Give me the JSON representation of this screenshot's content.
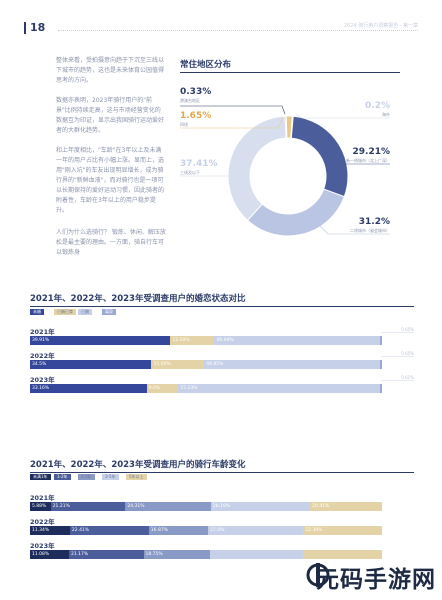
{
  "header": {
    "page_number": "18",
    "running_title": "2024 骑行用户洞察报告 · 第一章"
  },
  "body_paragraphs": [
    "整体来看，受拍摄意向趋于下沉至三线以下城市的趋势，这也是未来体育公园值得思考的方向。",
    "数据亦表明，2023年骑行用户的\"前景\"比例持续走高，这与市场经营变化的数据互为印证，显示出我国骑行运动爱好者的大群化趋势。",
    "和上年度相比，\"车龄\"在3年以上及未满一年的用户占比有小幅上涨。显而上，选用\"刚入坑\"的车友出现明显增长，成为骑行界的\"新鲜血液\"，而对骑行也是一项可以长期保持的爱好运动习惯，因此骑者的附着性，车龄在3年以上的用户稳步提升。",
    "人们为什么选骑行？ 锻炼、休闲、解压放松是最主要的理由。一方面，骑自行车可以锻炼身"
  ],
  "chart_data": [
    {
      "type": "pie",
      "title": "常住地区分布",
      "slices": [
        {
          "label": "新一线城市",
          "value": 29.21,
          "color": "#4b5d9a"
        },
        {
          "label": "二线城市（省会城市）",
          "value": 31.2,
          "color": "#b9c5e2"
        },
        {
          "label": "三线及以下",
          "value": 37.41,
          "color": "#d7deee"
        },
        {
          "label": "四线",
          "value": 1.65,
          "color": "#e8c98a"
        },
        {
          "label": "港澳台地区",
          "value": 0.33,
          "color": "#2b3a67"
        },
        {
          "label": "海外",
          "value": 0.2,
          "color": "#c6d0e8"
        }
      ]
    },
    {
      "type": "bar",
      "title": "2021年、2022年、2023年受调查用户的婚恋状态对比",
      "legend": [
        "未婚",
        "已婚已育",
        "已婚",
        "离异"
      ],
      "colors": [
        "#34479a",
        "#e3d3a6",
        "#c6d0e8",
        "#9aa9d4"
      ],
      "categories": [
        "2021年",
        "2022年",
        "2023年"
      ],
      "end_labels": [
        "0.65%",
        "0.65%",
        "0.61%"
      ],
      "series": [
        {
          "name": "未婚",
          "values": [
            39.91,
            34.5,
            33.16
          ]
        },
        {
          "name": "已婚已育",
          "values": [
            12.5,
            15.0,
            9.0
          ]
        },
        {
          "name": "已婚",
          "values": [
            46.94,
            49.85,
            57.23
          ]
        },
        {
          "name": "离异",
          "values": [
            0.65,
            0.65,
            0.61
          ]
        }
      ],
      "segment_labels": [
        [
          "39.91%",
          "12.50%",
          "46.94%",
          ""
        ],
        [
          "34.5%",
          "15.00%",
          "49.85%",
          ""
        ],
        [
          "33.16%",
          "9.0%",
          "57.23%",
          ""
        ]
      ]
    },
    {
      "type": "bar",
      "title": "2021年、2022年、2023年受调查用户的骑行车龄变化",
      "legend": [
        "未满1年",
        "1-2年",
        "2-3年",
        "3-5年",
        "5年以上"
      ],
      "colors": [
        "#1f2d5c",
        "#4b5d9a",
        "#8a9ac6",
        "#c6d0e8",
        "#e3d3a6"
      ],
      "categories": [
        "2021年",
        "2022年",
        "2023年"
      ],
      "series": [
        {
          "name": "未满1年",
          "values": [
            5.88,
            11.34,
            11.08
          ]
        },
        {
          "name": "1-2年",
          "values": [
            21.21,
            22.41,
            21.17
          ]
        },
        {
          "name": "2-3年",
          "values": [
            24.31,
            16.87,
            18.75
          ]
        },
        {
          "name": "3-5年",
          "values": [
            28.19,
            27.0,
            26.5
          ]
        },
        {
          "name": "5年以上",
          "values": [
            20.41,
            22.38,
            22.5
          ]
        }
      ],
      "segment_labels": [
        [
          "5.88%",
          "21.21%",
          "24.31%",
          "28.19%",
          "20.41%"
        ],
        [
          "11.34%",
          "22.41%",
          "16.87%",
          "27.0%",
          "22.38%"
        ],
        [
          "11.08%",
          "21.17%",
          "18.75%",
          "",
          ""
        ]
      ]
    }
  ],
  "pie_labels": {
    "p033": {
      "value": "0.33%",
      "label": "港澳台地区"
    },
    "p165": {
      "value": "1.65%",
      "label": "四线"
    },
    "p3741": {
      "value": "37.41%",
      "label": "三线及以下"
    },
    "p02": {
      "value": "0.2%",
      "label": "海外"
    },
    "p2921": {
      "value": "29.21%",
      "label": "新一线城市（北上广深）"
    },
    "p312": {
      "value": "31.2%",
      "label": "二线城市（省会城市）"
    }
  },
  "watermark": "元码手游网"
}
